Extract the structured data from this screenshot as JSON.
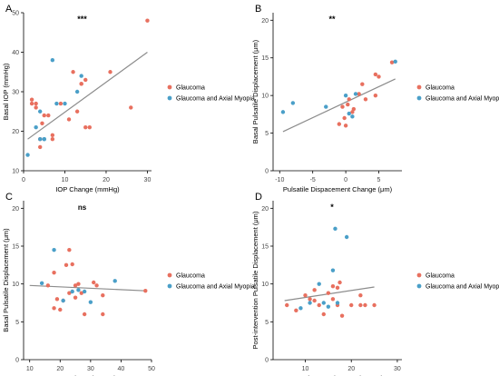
{
  "colors": {
    "glaucoma": "#E8705F",
    "glaucoma_axial_myopia": "#4A9FC8",
    "regression_line": "#8C8C8C",
    "axis": "#000000"
  },
  "chart_data": [
    {
      "panel": "A",
      "type": "scatter",
      "significance": "***",
      "xlabel": "IOP Change (mmHg)",
      "ylabel": "Basal IOP (mmHg)",
      "xlim": [
        0,
        31
      ],
      "ylim": [
        10,
        50
      ],
      "xticks": [
        0,
        10,
        20,
        30
      ],
      "yticks": [
        10,
        20,
        30,
        40,
        50
      ],
      "legend": [
        "Glaucoma",
        "Glaucoma and Axial Myopia"
      ],
      "regression": {
        "x": [
          1,
          30
        ],
        "y": [
          18,
          40
        ]
      },
      "series": [
        {
          "name": "Glaucoma",
          "color_key": "glaucoma",
          "points": [
            [
              2,
              28
            ],
            [
              2,
              27
            ],
            [
              3,
              27
            ],
            [
              3,
              26
            ],
            [
              4,
              16
            ],
            [
              4,
              18
            ],
            [
              4.5,
              22
            ],
            [
              5,
              24
            ],
            [
              6,
              24
            ],
            [
              7,
              19
            ],
            [
              7,
              18
            ],
            [
              9,
              27
            ],
            [
              11,
              23
            ],
            [
              12,
              35
            ],
            [
              13,
              25
            ],
            [
              14,
              32
            ],
            [
              14,
              32
            ],
            [
              15,
              33
            ],
            [
              15,
              21
            ],
            [
              16,
              21
            ],
            [
              21,
              35
            ],
            [
              26,
              26
            ],
            [
              30,
              48
            ]
          ]
        },
        {
          "name": "Glaucoma and Axial Myopia",
          "color_key": "glaucoma_axial_myopia",
          "points": [
            [
              1,
              14
            ],
            [
              3,
              21
            ],
            [
              4,
              25
            ],
            [
              4,
              18
            ],
            [
              5,
              18
            ],
            [
              7,
              38
            ],
            [
              8,
              27
            ],
            [
              10,
              27
            ],
            [
              13,
              30
            ],
            [
              14,
              34
            ],
            [
              5,
              18
            ]
          ]
        }
      ]
    },
    {
      "panel": "B",
      "type": "scatter",
      "significance": "**",
      "xlabel": "Pulsatile Dispacement Change (μm)",
      "ylabel": "Basal Pulsatile Displacement (μm)",
      "xlim": [
        -11,
        8.5
      ],
      "ylim": [
        0,
        21
      ],
      "xticks": [
        -10,
        -5,
        0,
        5
      ],
      "yticks": [
        0,
        5,
        10,
        15,
        20
      ],
      "legend": [
        "Glaucoma",
        "Glaucoma and Axial Myopia"
      ],
      "regression": {
        "x": [
          -9.5,
          7.5
        ],
        "y": [
          5.2,
          12.2
        ]
      },
      "series": [
        {
          "name": "Glaucoma",
          "color_key": "glaucoma",
          "points": [
            [
              -1,
              6.2
            ],
            [
              -0.5,
              8.5
            ],
            [
              -0.2,
              7
            ],
            [
              0,
              6
            ],
            [
              0.3,
              8.8
            ],
            [
              0.5,
              9.5
            ],
            [
              1,
              7.8
            ],
            [
              1.2,
              8.2
            ],
            [
              2,
              10.2
            ],
            [
              2.5,
              11.5
            ],
            [
              3,
              9.5
            ],
            [
              4.5,
              10
            ],
            [
              4.5,
              12.8
            ],
            [
              5,
              12.5
            ],
            [
              7,
              14.4
            ]
          ]
        },
        {
          "name": "Glaucoma and Axial Myopia",
          "color_key": "glaucoma_axial_myopia",
          "points": [
            [
              -9.5,
              7.8
            ],
            [
              -8,
              9
            ],
            [
              -3,
              8.5
            ],
            [
              0,
              10
            ],
            [
              0.5,
              7.6
            ],
            [
              1,
              7.2
            ],
            [
              7.5,
              14.5
            ],
            [
              1.5,
              10.2
            ]
          ]
        }
      ]
    },
    {
      "panel": "C",
      "type": "scatter",
      "significance": "ns",
      "xlabel": "Basal IOP (mmHg)",
      "ylabel": "Basal Pulsatile Displacement (μm)",
      "xlim": [
        8,
        50
      ],
      "ylim": [
        0,
        21
      ],
      "xticks": [
        10,
        20,
        30,
        40,
        50
      ],
      "yticks": [
        0,
        5,
        10,
        15,
        20
      ],
      "legend": [
        "Glaucoma",
        "Glaucoma and Axial Myopia"
      ],
      "regression": {
        "x": [
          10,
          48
        ],
        "y": [
          9.8,
          9.1
        ]
      },
      "series": [
        {
          "name": "Glaucoma",
          "color_key": "glaucoma",
          "points": [
            [
              16,
              9.8
            ],
            [
              18,
              6.8
            ],
            [
              18,
              11.5
            ],
            [
              19,
              8
            ],
            [
              20,
              6.6
            ],
            [
              21,
              7.8
            ],
            [
              22,
              12.5
            ],
            [
              23,
              14.5
            ],
            [
              23,
              8.8
            ],
            [
              24,
              12.6
            ],
            [
              25,
              8.2
            ],
            [
              25,
              9.8
            ],
            [
              26,
              10
            ],
            [
              27,
              8.8
            ],
            [
              28,
              6
            ],
            [
              31,
              10.2
            ],
            [
              32,
              9.8
            ],
            [
              34,
              8.5
            ],
            [
              34,
              6
            ],
            [
              48,
              9.1
            ]
          ]
        },
        {
          "name": "Glaucoma and Axial Myopia",
          "color_key": "glaucoma_axial_myopia",
          "points": [
            [
              14,
              10.1
            ],
            [
              18,
              14.5
            ],
            [
              21,
              7.8
            ],
            [
              24,
              9
            ],
            [
              26,
              9.2
            ],
            [
              28,
              9
            ],
            [
              30,
              7.6
            ],
            [
              38,
              10.4
            ]
          ]
        }
      ]
    },
    {
      "panel": "D",
      "type": "scatter",
      "significance": "*",
      "xlabel": "Post-intervention IOP (mmHg)",
      "ylabel": "Post-intervention Pulsatile Displacement (μm)",
      "xlim": [
        3,
        31
      ],
      "ylim": [
        0,
        21
      ],
      "xticks": [
        10,
        20,
        30
      ],
      "yticks": [
        0,
        5,
        10,
        15,
        20
      ],
      "legend": [
        "Glaucoma",
        "Glaucoma and Axial Myopia"
      ],
      "regression": {
        "x": [
          5.5,
          25
        ],
        "y": [
          7.8,
          9.6
        ]
      },
      "series": [
        {
          "name": "Glaucoma",
          "color_key": "glaucoma",
          "points": [
            [
              6,
              7.2
            ],
            [
              8,
              6.5
            ],
            [
              10,
              8.5
            ],
            [
              11,
              8
            ],
            [
              12,
              9.2
            ],
            [
              12,
              7.8
            ],
            [
              13,
              7.2
            ],
            [
              14,
              6
            ],
            [
              15,
              8.8
            ],
            [
              16,
              8
            ],
            [
              16,
              9.7
            ],
            [
              17,
              7.2
            ],
            [
              17,
              9.5
            ],
            [
              17.5,
              10.2
            ],
            [
              18,
              5.8
            ],
            [
              20,
              7.2
            ],
            [
              22,
              8.5
            ],
            [
              22,
              7.2
            ],
            [
              23,
              7.2
            ],
            [
              25,
              7.2
            ]
          ]
        },
        {
          "name": "Glaucoma and Axial Myopia",
          "color_key": "glaucoma_axial_myopia",
          "points": [
            [
              9,
              6.8
            ],
            [
              11,
              7.5
            ],
            [
              13,
              10
            ],
            [
              14,
              7.5
            ],
            [
              15,
              7
            ],
            [
              16,
              11.8
            ],
            [
              16.5,
              17.3
            ],
            [
              17,
              7.5
            ],
            [
              19,
              16.2
            ]
          ]
        }
      ]
    }
  ]
}
